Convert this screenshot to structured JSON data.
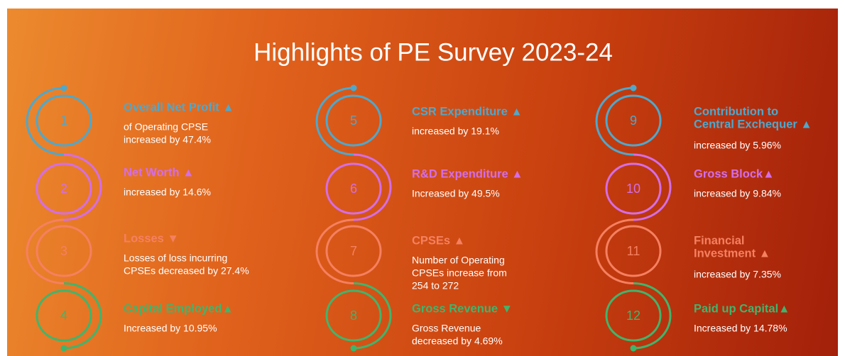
{
  "title": "Highlights of PE Survey 2023-24",
  "items": [
    {
      "number": "1",
      "color": "#4ea8cc",
      "heading": [
        "Overall Net Profit ▲"
      ],
      "description": [
        "of Operating CPSE",
        "increased by 47.4%"
      ]
    },
    {
      "number": "2",
      "color": "#d46ee6",
      "heading": [
        "Net Worth ▲"
      ],
      "description": [
        "increased by 14.6%"
      ]
    },
    {
      "number": "3",
      "color": "#f58060",
      "heading": [
        "Losses ▼"
      ],
      "description": [
        "Losses of loss incurring",
        "CPSEs decreased by 27.4%"
      ]
    },
    {
      "number": "4",
      "color": "#3fb56c",
      "heading": [
        "Capital Employed▲"
      ],
      "description": [
        "Increased by 10.95%"
      ]
    },
    {
      "number": "5",
      "color": "#4ea8cc",
      "heading": [
        "CSR Expenditure ▲"
      ],
      "description": [
        "increased by 19.1%"
      ]
    },
    {
      "number": "6",
      "color": "#d46ee6",
      "heading": [
        "R&D Expenditure ▲"
      ],
      "description": [
        "Increased by 49.5%"
      ]
    },
    {
      "number": "7",
      "color": "#f58060",
      "heading": [
        "CPSEs  ▲"
      ],
      "description": [
        "Number of Operating",
        "CPSEs increase from",
        "254 to 272"
      ]
    },
    {
      "number": "8",
      "color": "#3fb56c",
      "heading": [
        "Gross Revenue ▼"
      ],
      "description": [
        "Gross Revenue",
        "decreased by  4.69%"
      ]
    },
    {
      "number": "9",
      "color": "#4ea8cc",
      "heading": [
        "Contribution to",
        "Central Exchequer ▲"
      ],
      "description": [
        "increased by 5.96%"
      ]
    },
    {
      "number": "10",
      "color": "#d46ee6",
      "heading": [
        "Gross Block▲"
      ],
      "description": [
        "increased by 9.84%"
      ]
    },
    {
      "number": "11",
      "color": "#f58060",
      "heading": [
        "Financial",
        "Investment ▲"
      ],
      "description": [
        "increased by 7.35%"
      ]
    },
    {
      "number": "12",
      "color": "#3fb56c",
      "heading": [
        "Paid up Capital▲"
      ],
      "description": [
        "Increased by 14.78%"
      ]
    }
  ]
}
